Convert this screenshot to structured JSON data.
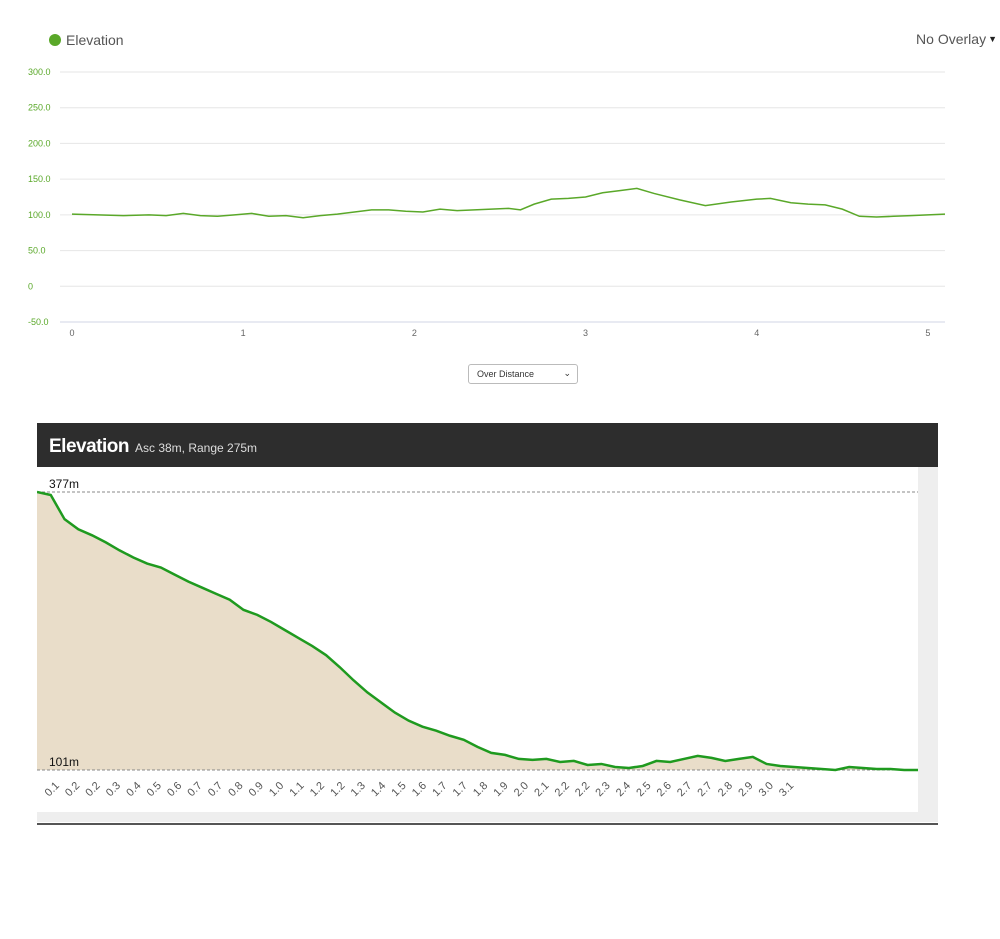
{
  "top": {
    "legend_label": "Elevation",
    "overlay_label": "No Overlay",
    "mode_select": "Over Distance",
    "colors": {
      "series": "#5aa829",
      "grid": "#e6e6e6"
    }
  },
  "profile": {
    "title": "Elevation",
    "subtitle": "Asc 38m, Range 275m",
    "max_label": "377m",
    "min_label": "101m",
    "colors": {
      "line": "#1f9a1f",
      "fill": "#e9ddc9",
      "background": "#eeeeee"
    }
  },
  "chart_data": [
    {
      "type": "line",
      "title": "",
      "xlabel": "",
      "ylabel": "",
      "series": [
        {
          "name": "Elevation"
        }
      ],
      "ylim": [
        -50,
        300
      ],
      "xlim": [
        0,
        5.1
      ],
      "ytick_labels": [
        "300.0",
        "250.0",
        "200.0",
        "150.0",
        "100.0",
        "50.0",
        "0",
        "-50.0"
      ],
      "xtick_labels": [
        "0",
        "1",
        "2",
        "3",
        "4",
        "5"
      ],
      "x": [
        0.0,
        0.15,
        0.3,
        0.45,
        0.55,
        0.65,
        0.75,
        0.85,
        0.95,
        1.05,
        1.15,
        1.25,
        1.35,
        1.45,
        1.55,
        1.65,
        1.75,
        1.85,
        1.95,
        2.05,
        2.15,
        2.25,
        2.35,
        2.45,
        2.55,
        2.62,
        2.7,
        2.8,
        2.9,
        3.0,
        3.1,
        3.2,
        3.3,
        3.4,
        3.55,
        3.7,
        3.85,
        4.0,
        4.08,
        4.2,
        4.3,
        4.4,
        4.5,
        4.6,
        4.7,
        4.8,
        4.9,
        5.1
      ],
      "y": [
        101,
        100,
        99,
        100,
        99,
        102,
        99,
        98,
        100,
        102,
        98,
        99,
        96,
        99,
        101,
        104,
        107,
        107,
        105,
        104,
        108,
        106,
        107,
        108,
        109,
        107,
        115,
        122,
        123,
        125,
        131,
        134,
        137,
        130,
        121,
        113,
        118,
        122,
        123,
        117,
        115,
        114,
        108,
        98,
        97,
        98,
        99,
        101
      ]
    },
    {
      "type": "area",
      "title": "",
      "xlabel": "",
      "ylabel": "",
      "ylim": [
        101,
        377
      ],
      "x_tick_labels": [
        "0.1",
        "0.2",
        "0.2",
        "0.3",
        "0.4",
        "0.5",
        "0.6",
        "0.7",
        "0.7",
        "0.8",
        "0.9",
        "1.0",
        "1.1",
        "1.2",
        "1.2",
        "1.3",
        "1.4",
        "1.5",
        "1.6",
        "1.7",
        "1.7",
        "1.8",
        "1.9",
        "2.0",
        "2.1",
        "2.2",
        "2.2",
        "2.3",
        "2.4",
        "2.5",
        "2.6",
        "2.7",
        "2.7",
        "2.8",
        "2.9",
        "3.0",
        "3.1"
      ],
      "x": [
        0.0,
        0.05,
        0.1,
        0.15,
        0.2,
        0.25,
        0.3,
        0.35,
        0.4,
        0.45,
        0.5,
        0.55,
        0.6,
        0.65,
        0.7,
        0.75,
        0.8,
        0.85,
        0.9,
        0.95,
        1.0,
        1.05,
        1.1,
        1.15,
        1.2,
        1.25,
        1.3,
        1.35,
        1.4,
        1.45,
        1.5,
        1.55,
        1.6,
        1.65,
        1.7,
        1.75,
        1.8,
        1.85,
        1.9,
        1.95,
        2.0,
        2.05,
        2.1,
        2.15,
        2.2,
        2.25,
        2.3,
        2.35,
        2.4,
        2.45,
        2.5,
        2.55,
        2.6,
        2.65,
        2.7,
        2.75,
        2.8,
        2.85,
        2.9,
        2.95,
        3.0,
        3.05,
        3.1,
        3.15,
        3.2
      ],
      "y": [
        377,
        374,
        350,
        340,
        334,
        327,
        319,
        312,
        306,
        302,
        295,
        288,
        282,
        276,
        270,
        260,
        255,
        248,
        240,
        232,
        224,
        215,
        203,
        190,
        178,
        168,
        158,
        150,
        144,
        140,
        135,
        131,
        124,
        118,
        116,
        112,
        111,
        112,
        109,
        110,
        106,
        107,
        104,
        103,
        105,
        110,
        109,
        112,
        115,
        113,
        110,
        112,
        114,
        107,
        105,
        104,
        103,
        102,
        101,
        104,
        103,
        102,
        102,
        101,
        101
      ]
    }
  ]
}
